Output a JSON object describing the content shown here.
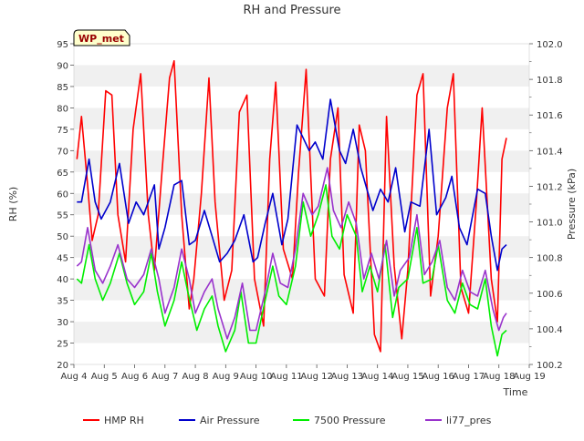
{
  "chart_data": {
    "type": "line",
    "title": "RH and Pressure",
    "xlabel": "Time",
    "ylabel_left": "RH (%)",
    "ylabel_right": "Pressure (kPa)",
    "badge": "WP_met",
    "x_ticks": [
      "Aug 4",
      "Aug 5",
      "Aug 6",
      "Aug 7",
      "Aug 8",
      "Aug 9",
      "Aug 10",
      "Aug 11",
      "Aug 12",
      "Aug 13",
      "Aug 14",
      "Aug 15",
      "Aug 16",
      "Aug 17",
      "Aug 18",
      "Aug 19"
    ],
    "xlim": [
      0,
      15
    ],
    "ylim_left": [
      20,
      95
    ],
    "ylim_right": [
      100.2,
      102.0
    ],
    "y_ticks_left": [
      20,
      25,
      30,
      35,
      40,
      45,
      50,
      55,
      60,
      65,
      70,
      75,
      80,
      85,
      90,
      95
    ],
    "y_ticks_right": [
      "100.2",
      "100.4",
      "100.6",
      "100.8",
      "101.0",
      "101.2",
      "101.4",
      "101.6",
      "101.8",
      "102.0"
    ],
    "grid": "horizontal bands",
    "legend_position": "bottom",
    "series": [
      {
        "name": "HMP RH",
        "axis": "left",
        "color": "#ff0000",
        "x": [
          0.1,
          0.25,
          0.45,
          0.6,
          0.8,
          1.05,
          1.25,
          1.45,
          1.7,
          1.95,
          2.2,
          2.45,
          2.65,
          2.9,
          3.15,
          3.3,
          3.55,
          3.8,
          3.95,
          4.2,
          4.45,
          4.65,
          4.95,
          5.2,
          5.45,
          5.7,
          5.95,
          6.25,
          6.45,
          6.65,
          6.9,
          7.2,
          7.4,
          7.65,
          7.95,
          8.25,
          8.45,
          8.7,
          8.9,
          9.2,
          9.4,
          9.6,
          9.9,
          10.1,
          10.3,
          10.55,
          10.8,
          11.0,
          11.3,
          11.5,
          11.75,
          12.0,
          12.3,
          12.5,
          12.75,
          13.0,
          13.25,
          13.45,
          13.75,
          13.95,
          14.1,
          14.25
        ],
        "y": [
          68,
          78,
          62,
          49,
          55,
          84,
          83,
          55,
          44,
          75,
          88,
          55,
          42,
          65,
          87,
          91,
          55,
          33,
          40,
          60,
          87,
          58,
          35,
          42,
          79,
          83,
          40,
          29,
          68,
          86,
          47,
          40,
          65,
          89,
          40,
          36,
          68,
          80,
          41,
          32,
          76,
          70,
          27,
          23,
          78,
          43,
          26,
          42,
          83,
          88,
          36,
          50,
          80,
          88,
          38,
          32,
          57,
          80,
          40,
          30,
          68,
          73
        ]
      },
      {
        "name": "Air Pressure",
        "axis": "left",
        "color": "#0000cc",
        "x": [
          0.1,
          0.25,
          0.5,
          0.7,
          0.9,
          1.2,
          1.5,
          1.8,
          2.05,
          2.3,
          2.65,
          2.8,
          3.0,
          3.3,
          3.55,
          3.8,
          4.0,
          4.3,
          4.55,
          4.8,
          5.05,
          5.3,
          5.6,
          5.9,
          6.05,
          6.3,
          6.55,
          6.85,
          7.05,
          7.35,
          7.75,
          7.95,
          8.2,
          8.45,
          8.75,
          8.95,
          9.2,
          9.45,
          9.85,
          10.1,
          10.35,
          10.6,
          10.9,
          11.1,
          11.4,
          11.7,
          11.95,
          12.25,
          12.45,
          12.7,
          12.95,
          13.3,
          13.55,
          13.75,
          13.95,
          14.1,
          14.25
        ],
        "y": [
          58,
          58,
          68,
          58,
          54,
          58,
          67,
          53,
          58,
          55,
          62,
          47,
          52,
          62,
          63,
          48,
          49,
          56,
          50,
          44,
          46,
          49,
          55,
          44,
          45,
          53,
          60,
          48,
          54,
          76,
          70,
          72,
          68,
          82,
          70,
          67,
          75,
          66,
          56,
          61,
          58,
          66,
          51,
          58,
          57,
          75,
          55,
          59,
          64,
          52,
          48,
          61,
          60,
          50,
          42,
          47,
          48
        ]
      },
      {
        "name": "7500 Pressure",
        "axis": "left",
        "color": "#00ee00",
        "x": [
          0.1,
          0.25,
          0.5,
          0.7,
          0.95,
          1.2,
          1.5,
          1.75,
          2.0,
          2.3,
          2.55,
          2.75,
          3.0,
          3.3,
          3.55,
          3.75,
          4.05,
          4.3,
          4.55,
          4.75,
          5.0,
          5.3,
          5.5,
          5.75,
          6.0,
          6.3,
          6.55,
          6.75,
          7.0,
          7.3,
          7.55,
          7.8,
          8.05,
          8.3,
          8.5,
          8.75,
          9.0,
          9.3,
          9.5,
          9.75,
          10.0,
          10.25,
          10.5,
          10.7,
          11.0,
          11.3,
          11.5,
          11.8,
          12.0,
          12.3,
          12.55,
          12.8,
          13.05,
          13.3,
          13.55,
          13.75,
          13.95,
          14.1,
          14.25
        ],
        "y": [
          40,
          39,
          48,
          40,
          35,
          39,
          46,
          39,
          34,
          37,
          46,
          37,
          29,
          35,
          44,
          37,
          28,
          33,
          36,
          29,
          23,
          28,
          37,
          25,
          25,
          35,
          43,
          36,
          34,
          43,
          58,
          50,
          55,
          62,
          50,
          47,
          55,
          50,
          37,
          43,
          37,
          48,
          31,
          38,
          40,
          52,
          39,
          40,
          48,
          35,
          32,
          39,
          34,
          33,
          40,
          29,
          22,
          27,
          28
        ]
      },
      {
        "name": "li77_pres",
        "axis": "left",
        "color": "#9933cc",
        "x": [
          0.1,
          0.25,
          0.45,
          0.7,
          0.95,
          1.2,
          1.45,
          1.75,
          2.0,
          2.3,
          2.55,
          2.8,
          3.0,
          3.3,
          3.55,
          3.8,
          4.0,
          4.3,
          4.55,
          4.75,
          5.05,
          5.3,
          5.55,
          5.8,
          6.0,
          6.3,
          6.55,
          6.8,
          7.05,
          7.3,
          7.55,
          7.85,
          8.05,
          8.35,
          8.55,
          8.8,
          9.05,
          9.3,
          9.55,
          9.8,
          10.05,
          10.3,
          10.55,
          10.75,
          11.05,
          11.3,
          11.55,
          11.8,
          12.05,
          12.3,
          12.55,
          12.8,
          13.05,
          13.3,
          13.55,
          13.8,
          14.0,
          14.15,
          14.25
        ],
        "y": [
          43,
          44,
          52,
          42,
          39,
          43,
          48,
          40,
          38,
          41,
          47,
          40,
          32,
          38,
          47,
          40,
          32,
          37,
          40,
          33,
          26,
          31,
          39,
          28,
          28,
          37,
          46,
          39,
          38,
          47,
          60,
          55,
          57,
          66,
          56,
          52,
          58,
          53,
          40,
          46,
          40,
          49,
          36,
          42,
          45,
          55,
          41,
          44,
          49,
          38,
          35,
          42,
          37,
          36,
          42,
          33,
          28,
          31,
          32
        ]
      }
    ]
  }
}
